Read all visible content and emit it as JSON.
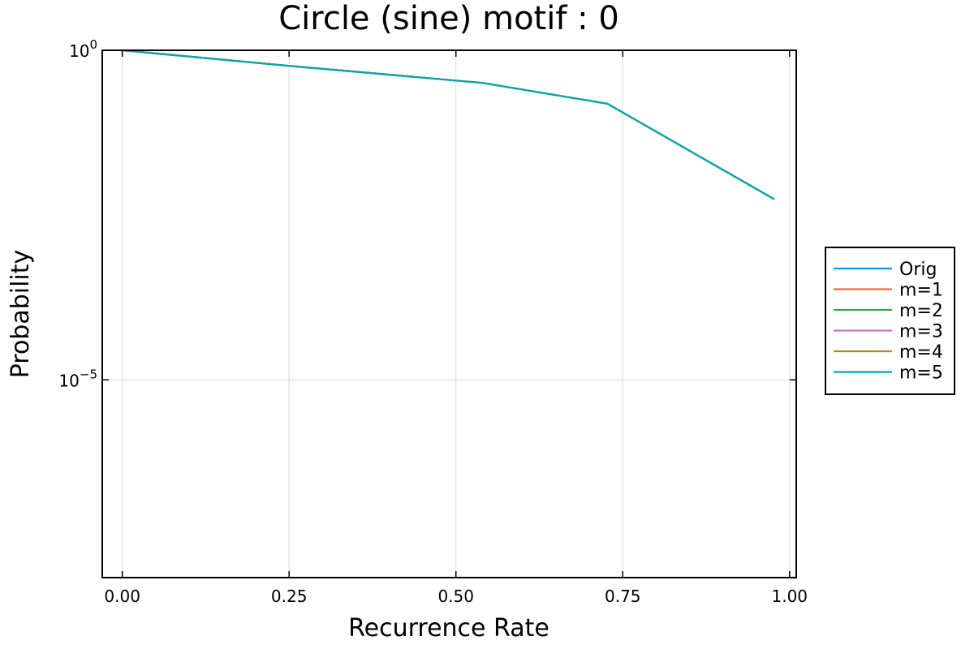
{
  "chart_data": {
    "type": "line",
    "title": "Circle (sine) motif : 0",
    "xlabel": "Recurrence Rate",
    "ylabel": "Probability",
    "xlim": [
      -0.03,
      1.01
    ],
    "ylim_log10": [
      -8,
      0
    ],
    "y_scale": "log10",
    "x_ticks": [
      "0.00",
      "0.25",
      "0.50",
      "0.75",
      "1.00"
    ],
    "x_tick_values": [
      0,
      0.25,
      0.5,
      0.75,
      1.0
    ],
    "y_ticks": [
      {
        "base": "10",
        "exp": "0",
        "value": 1
      },
      {
        "base": "10",
        "exp": "−5",
        "value": 1e-05
      }
    ],
    "grid": true,
    "legend_position": "outer right",
    "series": [
      {
        "name": "Orig",
        "color": "#009AFA",
        "x": [
          0.0,
          0.25,
          0.54,
          0.727,
          0.977
        ],
        "y": [
          1.0,
          0.58,
          0.32,
          0.155,
          0.0055
        ]
      },
      {
        "name": "m=1",
        "color": "#E36F47",
        "x": [
          0.0,
          0.25,
          0.54,
          0.727,
          0.977
        ],
        "y": [
          1.0,
          0.58,
          0.32,
          0.155,
          0.0055
        ]
      },
      {
        "name": "m=2",
        "color": "#3EA44E",
        "x": [
          0.0,
          0.25,
          0.54,
          0.727,
          0.977
        ],
        "y": [
          1.0,
          0.58,
          0.32,
          0.155,
          0.0055
        ]
      },
      {
        "name": "m=3",
        "color": "#C371D2",
        "x": [
          0.0,
          0.25,
          0.54,
          0.727,
          0.977
        ],
        "y": [
          1.0,
          0.58,
          0.32,
          0.155,
          0.0055
        ]
      },
      {
        "name": "m=4",
        "color": "#AC8E18",
        "x": [
          0.0,
          0.25,
          0.54,
          0.727,
          0.977
        ],
        "y": [
          1.0,
          0.58,
          0.32,
          0.155,
          0.0055
        ]
      },
      {
        "name": "m=5",
        "color": "#00A9AD",
        "x": [
          0.0,
          0.25,
          0.54,
          0.727,
          0.977
        ],
        "y": [
          1.0,
          0.58,
          0.32,
          0.155,
          0.0055
        ]
      }
    ]
  }
}
